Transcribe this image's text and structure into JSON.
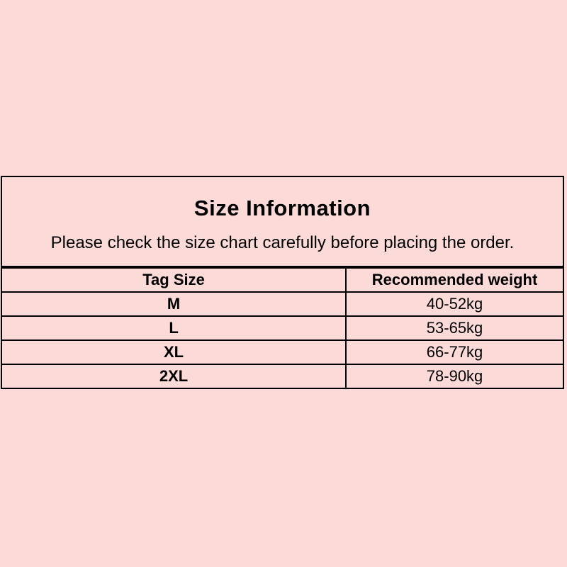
{
  "colors": {
    "background": "#fbdad7",
    "border": "#000000",
    "text": "#000000"
  },
  "chart_data": {
    "type": "table",
    "title": "Size Information",
    "subtitle": "Please check the size chart carefully before placing the order.",
    "columns": [
      "Tag Size",
      "Recommended weight"
    ],
    "rows": [
      [
        "M",
        "40-52kg"
      ],
      [
        "L",
        "53-65kg"
      ],
      [
        "XL",
        "66-77kg"
      ],
      [
        "2XL",
        "78-90kg"
      ]
    ]
  }
}
